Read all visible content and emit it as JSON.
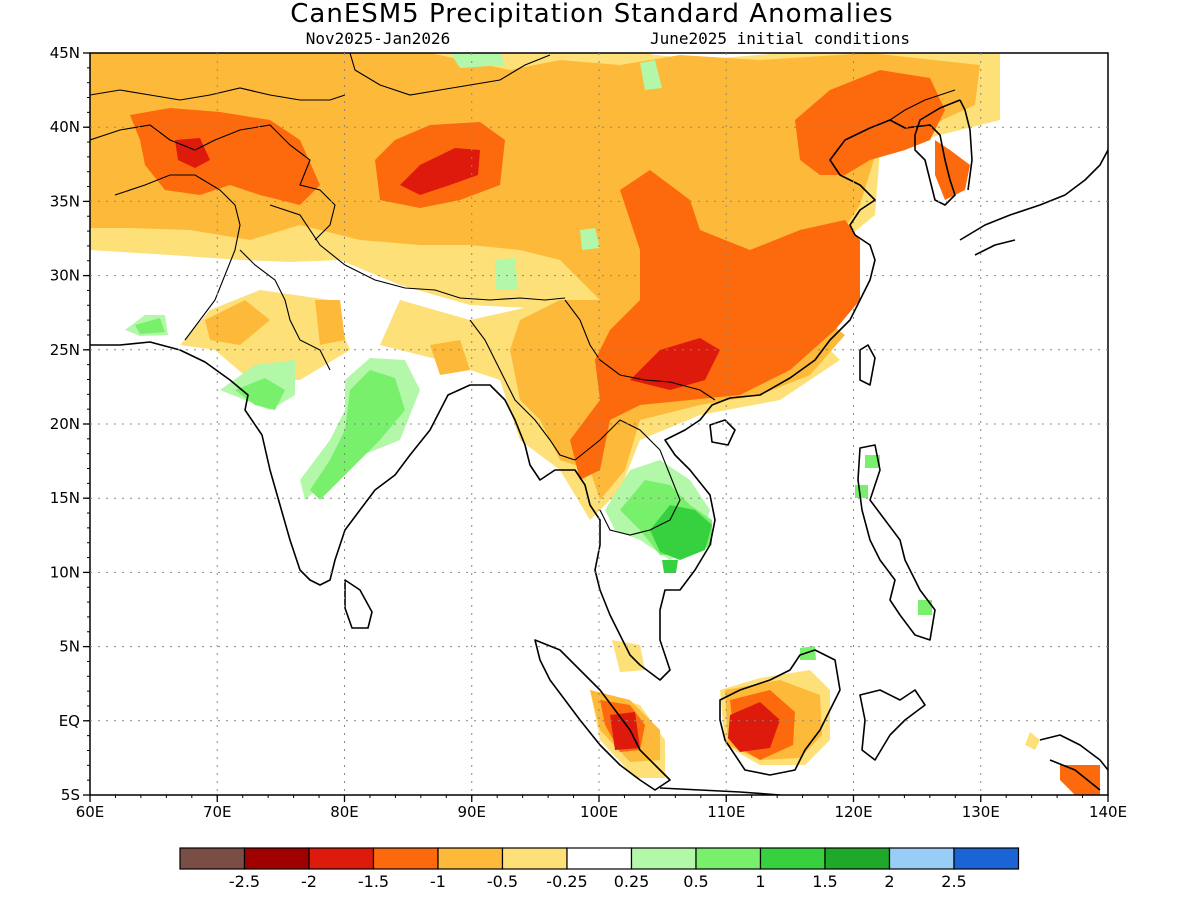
{
  "title": "CanESM5 Precipitation Standard Anomalies",
  "subtitle_left": "Nov2025-Jan2026",
  "subtitle_right": "June2025 initial conditions",
  "map": {
    "lon_range": [
      60,
      140
    ],
    "lat_range": [
      -5,
      45
    ],
    "x_ticks": [
      "60E",
      "70E",
      "80E",
      "90E",
      "100E",
      "110E",
      "120E",
      "130E",
      "140E"
    ],
    "y_ticks": [
      "5S",
      "EQ",
      "5N",
      "10N",
      "15N",
      "20N",
      "25N",
      "30N",
      "35N",
      "40N",
      "45N"
    ]
  },
  "legend": {
    "colors": [
      "#7a4e44",
      "#a00000",
      "#dd1a0c",
      "#fd6a0d",
      "#fdb93a",
      "#fee079",
      "#ffffff",
      "#b3f7a8",
      "#78f06c",
      "#37d13f",
      "#1fa82a",
      "#98cdf5",
      "#1a64d6"
    ],
    "labels": [
      "-2.5",
      "-2",
      "-1.5",
      "-1",
      "-0.5",
      "-0.25",
      "0.25",
      "0.5",
      "1",
      "1.5",
      "2",
      "2.5"
    ]
  }
}
